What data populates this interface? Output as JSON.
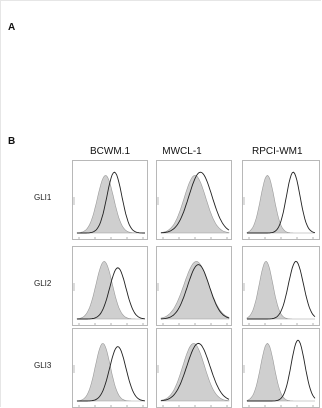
{
  "panels": {
    "a_label": "A",
    "b_label": "B"
  },
  "columns": [
    "BCWM.1",
    "MWCL-1",
    "RPCI-WM1"
  ],
  "rows": [
    "GLI1",
    "GLI2",
    "GLI3"
  ],
  "colors": {
    "isotype_fill": "#cfcfcf",
    "isotype_stroke": "#9a9a9a",
    "stain_stroke": "#222222",
    "frame": "#b8b8b8"
  }
}
